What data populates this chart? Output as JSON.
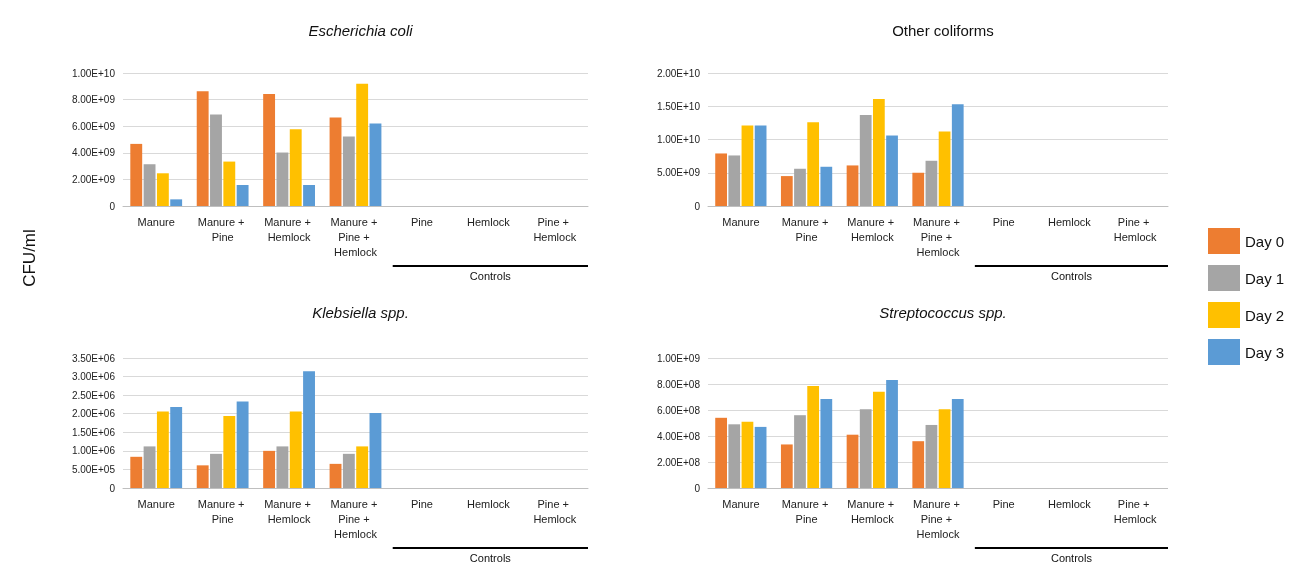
{
  "chart_data": [
    {
      "type": "bar",
      "title": "Escherichia coli",
      "ylabel": "CFU/ml",
      "categories": [
        "Manure",
        "Manure + Pine",
        "Manure + Hemlock",
        "Manure + Pine + Hemlock",
        "Pine",
        "Hemlock",
        "Pine + Hemlock"
      ],
      "series": [
        {
          "color": "#ed7d31",
          "values": [
            4670000000.0,
            8620000000.0,
            8420000000.0,
            6660000000.0,
            null,
            null,
            null
          ]
        },
        {
          "color": "#a5a5a5",
          "values": [
            3140000000.0,
            6880000000.0,
            4020000000.0,
            5230000000.0,
            null,
            null,
            null
          ]
        },
        {
          "color": "#ffc000",
          "values": [
            2460000000.0,
            3340000000.0,
            5780000000.0,
            9200000000.0,
            null,
            null,
            null
          ]
        },
        {
          "color": "#5b9bd5",
          "values": [
            500000000.0,
            1580000000.0,
            1580000000.0,
            6200000000.0,
            null,
            null,
            null
          ]
        }
      ],
      "ylim": [
        0,
        10000000000.0
      ],
      "yticks": [
        {
          "value": 0,
          "label": "0"
        },
        {
          "value": 2000000000.0,
          "label": "2.00E+09"
        },
        {
          "value": 4000000000.0,
          "label": "4.00E+09"
        },
        {
          "value": 6000000000.0,
          "label": "6.00E+09"
        },
        {
          "value": 8000000000.0,
          "label": "8.00E+09"
        },
        {
          "value": 10000000000.0,
          "label": "1.00E+10"
        }
      ],
      "grid": "y",
      "annotations": [
        "Controls"
      ]
    },
    {
      "type": "bar",
      "title": "Other coliforms",
      "categories": [
        "Manure",
        "Manure + Pine",
        "Manure + Hemlock",
        "Manure + Pine + Hemlock",
        "Pine",
        "Hemlock",
        "Pine + Hemlock"
      ],
      "series": [
        {
          "name": "Day 0",
          "color": "#ed7d31",
          "values": [
            7900000000.0,
            4500000000.0,
            6100000000.0,
            5000000000.0,
            null,
            null,
            null
          ]
        },
        {
          "name": "Day 1",
          "color": "#a5a5a5",
          "values": [
            7600000000.0,
            5600000000.0,
            13700000000.0,
            6800000000.0,
            null,
            null,
            null
          ]
        },
        {
          "name": "Day 2",
          "color": "#ffc000",
          "values": [
            12100000000.0,
            12600000000.0,
            16100000000.0,
            11200000000.0,
            null,
            null,
            null
          ]
        },
        {
          "name": "Day 3",
          "color": "#5b9bd5",
          "values": [
            12100000000.0,
            5900000000.0,
            10600000000.0,
            15300000000.0,
            null,
            null,
            null
          ]
        }
      ],
      "ylim": [
        0,
        20000000000.0
      ],
      "yticks": [
        {
          "value": 0,
          "label": "0"
        },
        {
          "value": 5000000000.0,
          "label": "5.00E+09"
        },
        {
          "value": 10000000000.0,
          "label": "1.00E+10"
        },
        {
          "value": 15000000000.0,
          "label": "1.50E+10"
        },
        {
          "value": 20000000000.0,
          "label": "2.00E+10"
        }
      ],
      "grid": "y",
      "legend": "right",
      "annotations": [
        "Controls"
      ]
    },
    {
      "type": "bar",
      "title": "Klebsiella spp.",
      "categories": [
        "Manure",
        "Manure + Pine",
        "Manure + Hemlock",
        "Manure + Pine + Hemlock",
        "Pine",
        "Hemlock",
        "Pine + Hemlock"
      ],
      "series": [
        {
          "color": "#ed7d31",
          "values": [
            840000.0,
            610000.0,
            1000000.0,
            650000.0,
            null,
            null,
            null
          ]
        },
        {
          "color": "#a5a5a5",
          "values": [
            1120000.0,
            920000.0,
            1120000.0,
            920000.0,
            null,
            null,
            null
          ]
        },
        {
          "color": "#ffc000",
          "values": [
            2060000.0,
            1940000.0,
            2060000.0,
            1120000.0,
            null,
            null,
            null
          ]
        },
        {
          "color": "#5b9bd5",
          "values": [
            2180000.0,
            2330000.0,
            3140000.0,
            2020000.0,
            null,
            null,
            null
          ]
        }
      ],
      "ylim": [
        0,
        3500000.0
      ],
      "yticks": [
        {
          "value": 0,
          "label": "0"
        },
        {
          "value": 500000.0,
          "label": "5.00E+05"
        },
        {
          "value": 1000000.0,
          "label": "1.00E+06"
        },
        {
          "value": 1500000.0,
          "label": "1.50E+06"
        },
        {
          "value": 2000000.0,
          "label": "2.00E+06"
        },
        {
          "value": 2500000.0,
          "label": "2.50E+06"
        },
        {
          "value": 3000000.0,
          "label": "3.00E+06"
        },
        {
          "value": 3500000.0,
          "label": "3.50E+06"
        }
      ],
      "grid": "y",
      "annotations": [
        "Controls"
      ]
    },
    {
      "type": "bar",
      "title": "Streptococcus spp.",
      "categories": [
        "Manure",
        "Manure + Pine",
        "Manure + Hemlock",
        "Manure + Pine + Hemlock",
        "Pine",
        "Hemlock",
        "Pine + Hemlock"
      ],
      "series": [
        {
          "color": "#ed7d31",
          "values": [
            540000000.0,
            335000000.0,
            410000000.0,
            360000000.0,
            null,
            null,
            null
          ]
        },
        {
          "color": "#a5a5a5",
          "values": [
            490000000.0,
            560000000.0,
            605000000.0,
            485000000.0,
            null,
            null,
            null
          ]
        },
        {
          "color": "#ffc000",
          "values": [
            510000000.0,
            785000000.0,
            740000000.0,
            605000000.0,
            null,
            null,
            null
          ]
        },
        {
          "color": "#5b9bd5",
          "values": [
            470000000.0,
            685000000.0,
            830000000.0,
            685000000.0,
            null,
            null,
            null
          ]
        }
      ],
      "ylim": [
        0,
        1000000000.0
      ],
      "yticks": [
        {
          "value": 0,
          "label": "0"
        },
        {
          "value": 200000000.0,
          "label": "2.00E+08"
        },
        {
          "value": 400000000.0,
          "label": "4.00E+08"
        },
        {
          "value": 600000000.0,
          "label": "6.00E+08"
        },
        {
          "value": 800000000.0,
          "label": "8.00E+08"
        },
        {
          "value": 1000000000.0,
          "label": "1.00E+09"
        }
      ],
      "grid": "y",
      "annotations": [
        "Controls"
      ]
    }
  ]
}
